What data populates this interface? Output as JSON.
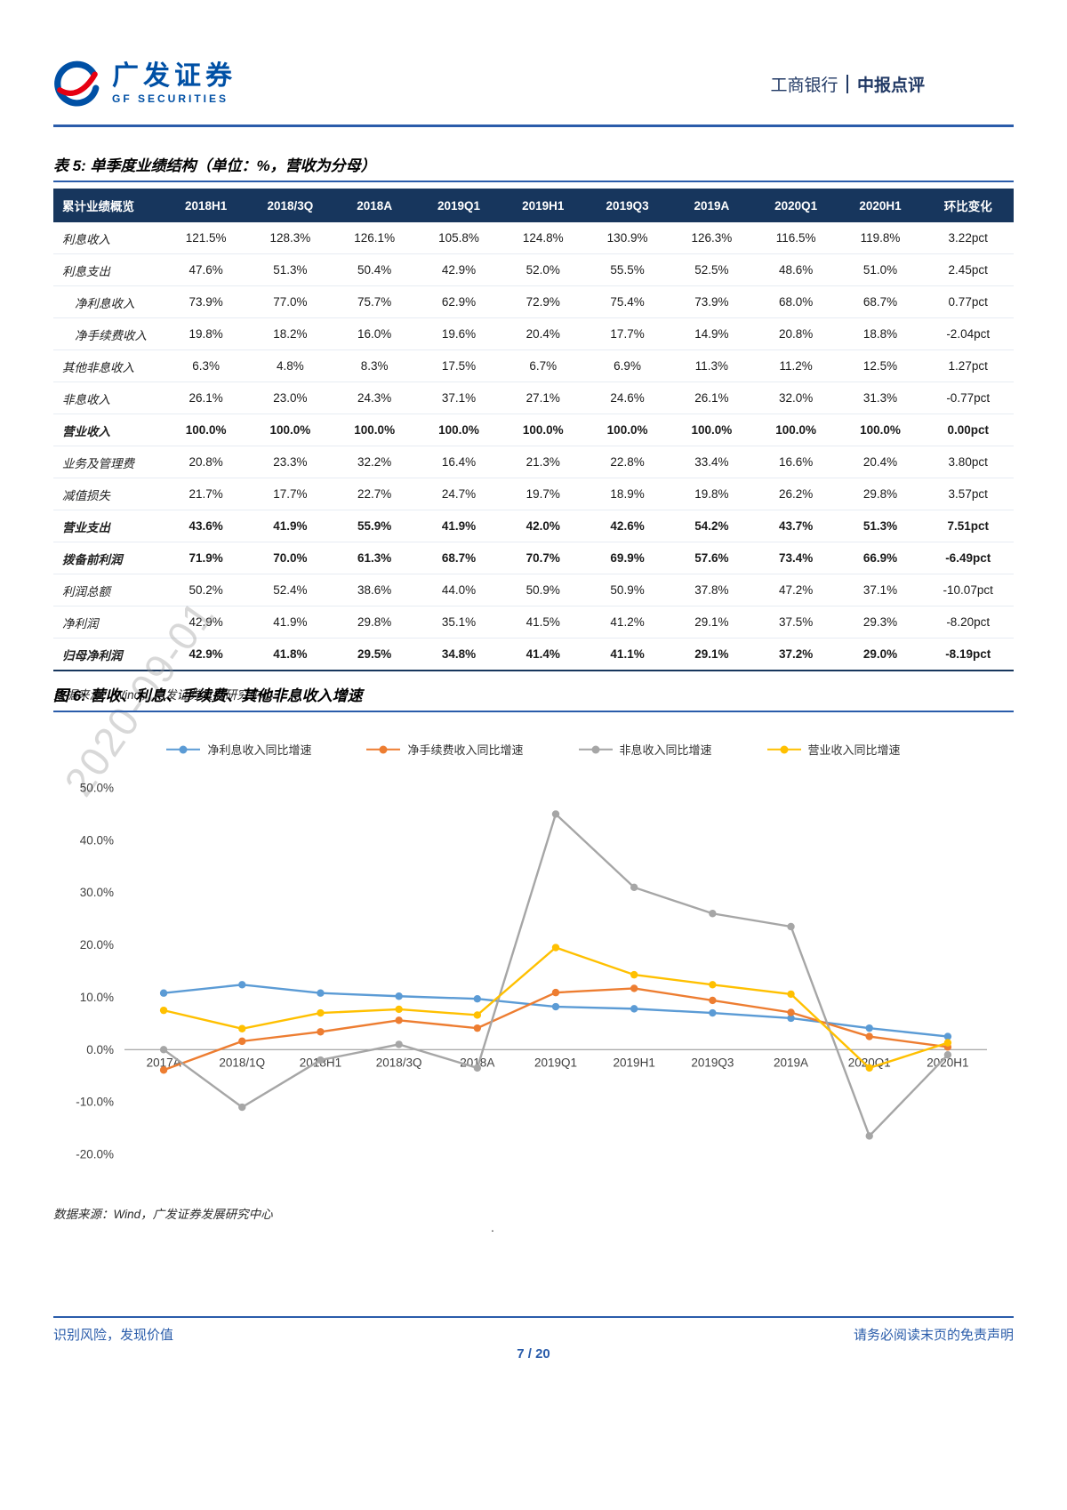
{
  "header": {
    "brand_cn": "广发证券",
    "brand_en": "GF SECURITIES",
    "stock_name": "工商银行",
    "report_type": "中报点评"
  },
  "watermark": "2020-09-01",
  "table_section": {
    "title": "表 5: 单季度业绩结构（单位：%，营收为分母）",
    "columns": [
      "累计业绩概览",
      "2018H1",
      "2018/3Q",
      "2018A",
      "2019Q1",
      "2019H1",
      "2019Q3",
      "2019A",
      "2020Q1",
      "2020H1",
      "环比变化"
    ],
    "rows": [
      {
        "label": "利息收入",
        "indent": false,
        "bold": false,
        "values": [
          "121.5%",
          "128.3%",
          "126.1%",
          "105.8%",
          "124.8%",
          "130.9%",
          "126.3%",
          "116.5%",
          "119.8%",
          "3.22pct"
        ]
      },
      {
        "label": "利息支出",
        "indent": false,
        "bold": false,
        "values": [
          "47.6%",
          "51.3%",
          "50.4%",
          "42.9%",
          "52.0%",
          "55.5%",
          "52.5%",
          "48.6%",
          "51.0%",
          "2.45pct"
        ]
      },
      {
        "label": "净利息收入",
        "indent": true,
        "bold": false,
        "values": [
          "73.9%",
          "77.0%",
          "75.7%",
          "62.9%",
          "72.9%",
          "75.4%",
          "73.9%",
          "68.0%",
          "68.7%",
          "0.77pct"
        ]
      },
      {
        "label": "净手续费收入",
        "indent": true,
        "bold": false,
        "values": [
          "19.8%",
          "18.2%",
          "16.0%",
          "19.6%",
          "20.4%",
          "17.7%",
          "14.9%",
          "20.8%",
          "18.8%",
          "-2.04pct"
        ]
      },
      {
        "label": "其他非息收入",
        "indent": false,
        "bold": false,
        "values": [
          "6.3%",
          "4.8%",
          "8.3%",
          "17.5%",
          "6.7%",
          "6.9%",
          "11.3%",
          "11.2%",
          "12.5%",
          "1.27pct"
        ]
      },
      {
        "label": "非息收入",
        "indent": false,
        "bold": false,
        "values": [
          "26.1%",
          "23.0%",
          "24.3%",
          "37.1%",
          "27.1%",
          "24.6%",
          "26.1%",
          "32.0%",
          "31.3%",
          "-0.77pct"
        ]
      },
      {
        "label": "营业收入",
        "indent": false,
        "bold": true,
        "values": [
          "100.0%",
          "100.0%",
          "100.0%",
          "100.0%",
          "100.0%",
          "100.0%",
          "100.0%",
          "100.0%",
          "100.0%",
          "0.00pct"
        ]
      },
      {
        "label": "业务及管理费",
        "indent": false,
        "bold": false,
        "values": [
          "20.8%",
          "23.3%",
          "32.2%",
          "16.4%",
          "21.3%",
          "22.8%",
          "33.4%",
          "16.6%",
          "20.4%",
          "3.80pct"
        ]
      },
      {
        "label": "减值损失",
        "indent": false,
        "bold": false,
        "values": [
          "21.7%",
          "17.7%",
          "22.7%",
          "24.7%",
          "19.7%",
          "18.9%",
          "19.8%",
          "26.2%",
          "29.8%",
          "3.57pct"
        ]
      },
      {
        "label": "营业支出",
        "indent": false,
        "bold": true,
        "values": [
          "43.6%",
          "41.9%",
          "55.9%",
          "41.9%",
          "42.0%",
          "42.6%",
          "54.2%",
          "43.7%",
          "51.3%",
          "7.51pct"
        ]
      },
      {
        "label": "拨备前利润",
        "indent": false,
        "bold": true,
        "values": [
          "71.9%",
          "70.0%",
          "61.3%",
          "68.7%",
          "70.7%",
          "69.9%",
          "57.6%",
          "73.4%",
          "66.9%",
          "-6.49pct"
        ]
      },
      {
        "label": "利润总额",
        "indent": false,
        "bold": false,
        "values": [
          "50.2%",
          "52.4%",
          "38.6%",
          "44.0%",
          "50.9%",
          "50.9%",
          "37.8%",
          "47.2%",
          "37.1%",
          "-10.07pct"
        ]
      },
      {
        "label": "净利润",
        "indent": false,
        "bold": false,
        "values": [
          "42.9%",
          "41.9%",
          "29.8%",
          "35.1%",
          "41.5%",
          "41.2%",
          "29.1%",
          "37.5%",
          "29.3%",
          "-8.20pct"
        ]
      },
      {
        "label": "归母净利润",
        "indent": false,
        "bold": true,
        "values": [
          "42.9%",
          "41.8%",
          "29.5%",
          "34.8%",
          "41.4%",
          "41.1%",
          "29.1%",
          "37.2%",
          "29.0%",
          "-8.19pct"
        ]
      }
    ],
    "source": "数据来源：Wind，广发证券发展研究中心"
  },
  "chart_section": {
    "title": "图 6: 营收、利息、手续费、其他非息收入增速",
    "source": "数据来源：Wind，广发证券发展研究中心",
    "stray_dot": "."
  },
  "chart_data": {
    "type": "line",
    "categories": [
      "2017A",
      "2018/1Q",
      "2018H1",
      "2018/3Q",
      "2018A",
      "2019Q1",
      "2019H1",
      "2019Q3",
      "2019A",
      "2020Q1",
      "2020H1"
    ],
    "series": [
      {
        "name": "净利息收入同比增速",
        "color": "#5B9BD5",
        "values": [
          10.8,
          12.4,
          10.8,
          10.2,
          9.7,
          8.2,
          7.8,
          7.0,
          6.0,
          4.1,
          2.5
        ]
      },
      {
        "name": "净手续费收入同比增速",
        "color": "#ED7D31",
        "values": [
          -3.9,
          1.6,
          3.4,
          5.6,
          4.1,
          10.9,
          11.7,
          9.4,
          7.1,
          2.5,
          0.5
        ]
      },
      {
        "name": "非息收入同比增速",
        "color": "#A6A6A6",
        "values": [
          0.0,
          -11.0,
          -2.0,
          1.0,
          -3.5,
          45.0,
          31.0,
          26.0,
          23.5,
          -16.5,
          -1.0
        ]
      },
      {
        "name": "营业收入同比增速",
        "color": "#FFC000",
        "values": [
          7.5,
          4.0,
          7.0,
          7.7,
          6.6,
          19.5,
          14.3,
          12.4,
          10.6,
          -3.5,
          1.3
        ]
      }
    ],
    "title": "营收、利息、手续费、其他非息收入增速",
    "xlabel": "",
    "ylabel": "",
    "ylim": [
      -20,
      50
    ],
    "ytick_step": 10,
    "grid": false,
    "legend_position": "top"
  },
  "footer": {
    "left": "识别风险，发现价值",
    "right": "请务必阅读末页的免责声明",
    "page_number": "7 / 20"
  }
}
